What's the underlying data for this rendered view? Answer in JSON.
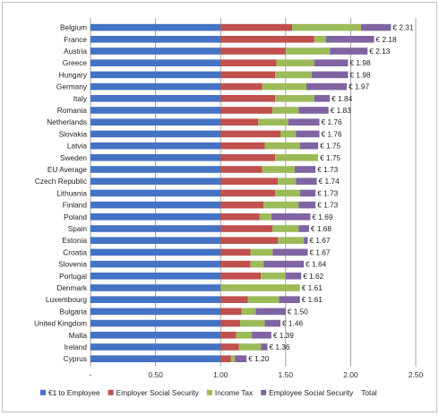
{
  "chart_data": {
    "type": "bar",
    "orientation": "horizontal",
    "stacked": true,
    "title": "",
    "xlabel": "",
    "ylabel": "",
    "xlim": [
      0,
      2.5
    ],
    "x_ticks": [
      "-",
      "0.50",
      "1.00",
      "1.50",
      "2.00",
      "2.50"
    ],
    "grid": "vertical",
    "legend_position": "bottom",
    "value_prefix": "€ ",
    "categories": [
      "Belgium",
      "France",
      "Austria",
      "Greece",
      "Hungary",
      "Germany",
      "Italy",
      "Romania",
      "Netherlands",
      "Slovakia",
      "Latvia",
      "Sweden",
      "EU Average",
      "Czech Republic",
      "Lithuania",
      "Finland",
      "Poland",
      "Spain",
      "Estonia",
      "Croatia",
      "Slovenia",
      "Portugal",
      "Denmark",
      "Luxembourg",
      "Bulgaria",
      "United Kingdom",
      "Malta",
      "Ireland",
      "Cyprus"
    ],
    "series": [
      {
        "name": "€1 to Employee",
        "color": "#4472C4",
        "values": [
          1,
          1,
          1,
          1,
          1,
          1,
          1,
          1,
          1,
          1,
          1,
          1,
          1,
          1,
          1,
          1,
          1,
          1,
          1,
          1,
          1,
          1,
          1,
          1,
          1,
          1,
          1,
          1,
          1
        ]
      },
      {
        "name": "Employer Social Security",
        "color": "#C0504D",
        "values": [
          0.55,
          0.72,
          0.5,
          0.43,
          0.42,
          0.32,
          0.42,
          0.4,
          0.29,
          0.46,
          0.34,
          0.42,
          0.32,
          0.44,
          0.42,
          0.33,
          0.3,
          0.4,
          0.44,
          0.23,
          0.23,
          0.31,
          0.0,
          0.21,
          0.16,
          0.15,
          0.12,
          0.14,
          0.08
        ]
      },
      {
        "name": "Income Tax",
        "color": "#9BBB59",
        "values": [
          0.53,
          0.09,
          0.34,
          0.29,
          0.28,
          0.34,
          0.3,
          0.2,
          0.23,
          0.12,
          0.27,
          0.33,
          0.25,
          0.14,
          0.19,
          0.27,
          0.09,
          0.2,
          0.2,
          0.17,
          0.1,
          0.19,
          0.61,
          0.24,
          0.11,
          0.19,
          0.12,
          0.17,
          0.03
        ]
      },
      {
        "name": "Employee Social Security",
        "color": "#8064A2",
        "values": [
          0.23,
          0.37,
          0.29,
          0.26,
          0.28,
          0.31,
          0.12,
          0.23,
          0.24,
          0.18,
          0.14,
          0.0,
          0.16,
          0.16,
          0.12,
          0.13,
          0.3,
          0.08,
          0.03,
          0.27,
          0.31,
          0.12,
          0.0,
          0.16,
          0.23,
          0.12,
          0.15,
          0.05,
          0.09
        ]
      },
      {
        "name": "Total",
        "color": "#000000",
        "values": [
          2.31,
          2.18,
          2.13,
          1.98,
          1.98,
          1.97,
          1.84,
          1.83,
          1.76,
          1.76,
          1.75,
          1.75,
          1.73,
          1.74,
          1.73,
          1.73,
          1.69,
          1.68,
          1.67,
          1.67,
          1.64,
          1.62,
          1.61,
          1.61,
          1.5,
          1.46,
          1.39,
          1.36,
          1.2
        ]
      }
    ],
    "total_labels": [
      "€ 2.31",
      "€ 2.18",
      "€ 2.13",
      "€ 1.98",
      "€ 1.98",
      "€ 1.97",
      "€ 1.84",
      "€ 1.83",
      "€ 1.76",
      "€ 1.76",
      "€ 1.75",
      "€ 1.75",
      "€ 1.73",
      "€ 1.74",
      "€ 1.73",
      "€ 1.73",
      "€ 1.69",
      "€ 1.68",
      "€ 1.67",
      "€ 1.67",
      "€ 1.64",
      "€ 1.62",
      "€ 1.61",
      "€ 1.61",
      "€ 1.50",
      "€ 1.46",
      "€ 1.39",
      "€ 1.36",
      "€ 1.20"
    ]
  }
}
